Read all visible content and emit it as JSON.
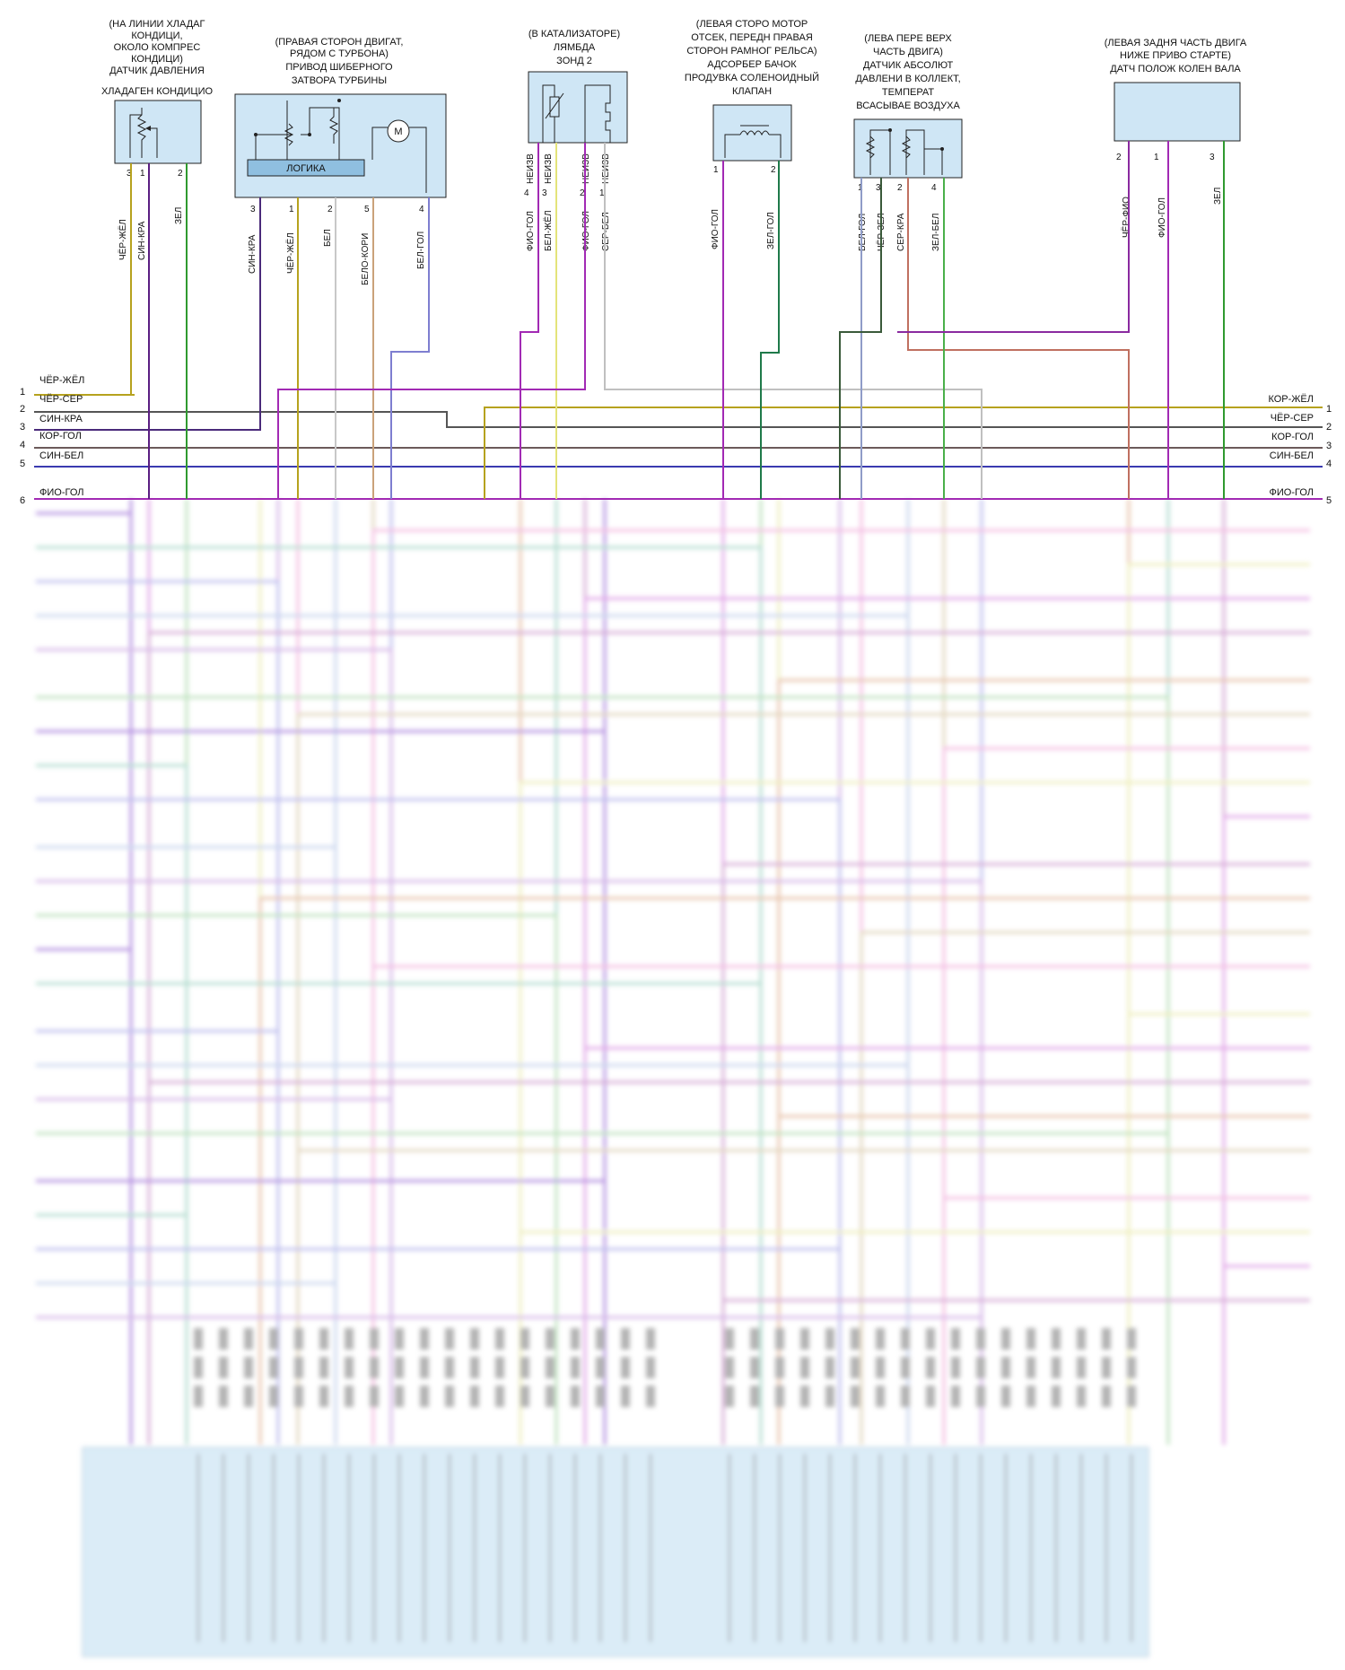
{
  "components": [
    {
      "id": "ac_pressure",
      "label_lines": [
        "(НА ЛИНИИ ХЛАДАГ",
        "КОНДИЦИ,",
        "ОКОЛО КОМПРЕС",
        "КОНДИЦИ)",
        "ДАТЧИК ДАВЛЕНИЯ",
        "ХЛАДАГЕН КОНДИЦИО"
      ],
      "pins": [
        {
          "num": "3",
          "wire": "ЧЁР-ЖЁЛ",
          "color": "#b6a21e"
        },
        {
          "num": "1",
          "wire": "СИН-КРА",
          "color": "#5a1e82"
        },
        {
          "num": "2",
          "wire": "ЗЕЛ",
          "color": "#2f9a2f"
        }
      ]
    },
    {
      "id": "turbo_actuator",
      "label_lines": [
        "(ПРАВАЯ СТОРОН ДВИГАТ,",
        "РЯДОМ С ТУРБОНА)",
        "ПРИВОД ШИБЕРНОГО",
        "ЗАТВОРА ТУРБИНЫ"
      ],
      "inner_text": "ЛОГИКА",
      "motor_text": "M",
      "pins": [
        {
          "num": "3",
          "wire": "СИН-КРА",
          "color": "#4a2a7a"
        },
        {
          "num": "1",
          "wire": "ЧЁР-ЖЁЛ",
          "color": "#b6a21e"
        },
        {
          "num": "2",
          "wire": "БЕЛ",
          "color": "#c8c8c8"
        },
        {
          "num": "5",
          "wire": "БЕЛО-КОРИ",
          "color": "#caa27a"
        },
        {
          "num": "4",
          "wire": "БЕЛ-ГОЛ",
          "color": "#7e7ed0"
        }
      ]
    },
    {
      "id": "lambda",
      "label_lines": [
        "(В КАТАЛИЗАТОРЕ)",
        "ЛЯМБДА",
        "ЗОНД 2"
      ],
      "pins": [
        {
          "num": "4",
          "wire": "ФИО-ГОЛ",
          "tag": "НЕИЗВ",
          "color": "#a22ab4"
        },
        {
          "num": "3",
          "wire": "БЕЛ-ЖЁЛ",
          "tag": "НЕИЗВ",
          "color": "#e4e47a"
        },
        {
          "num": "2",
          "wire": "ФИО-ГОЛ",
          "tag": "НЕИЗВ",
          "color": "#a22ab4"
        },
        {
          "num": "1",
          "wire": "СЕР-БЕЛ",
          "tag": "НЕИЗВ",
          "color": "#c0c0c0"
        }
      ]
    },
    {
      "id": "canister",
      "label_lines": [
        "(ЛЕВАЯ СТОРО МОТОР",
        "ОТСЕК, ПЕРЕДН ПРАВАЯ",
        "СТОРОН РАМНОГ РЕЛЬСА)",
        "АДСОРБЕР БАЧОК",
        "ПРОДУВКА СОЛЕНОИДНЫЙ",
        "КЛАПАН"
      ],
      "pins": [
        {
          "num": "1",
          "wire": "ФИО-ГОЛ",
          "color": "#a22ab4"
        },
        {
          "num": "2",
          "wire": "ЗЕЛ-ГОЛ",
          "color": "#1f7a4a"
        }
      ]
    },
    {
      "id": "map_sensor",
      "label_lines": [
        "(ЛЕВА ПЕРЕ ВЕРХ",
        "ЧАСТЬ ДВИГА)",
        "ДАТЧИК АБСОЛЮТ",
        "ДАВЛЕНИ В КОЛЛЕКТ,",
        "ТЕМПЕРАТ",
        "ВСАСЫВАЕ ВОЗДУХА"
      ],
      "pins": [
        {
          "num": "1",
          "wire": "БЕЛ-ГОЛ",
          "color": "#8f9cc8"
        },
        {
          "num": "3",
          "wire": "ЧЁР-ЗЕЛ",
          "color": "#3a5a3a"
        },
        {
          "num": "2",
          "wire": "СЕР-КРА",
          "color": "#c07060"
        },
        {
          "num": "4",
          "wire": "ЗЕЛ-БЕЛ",
          "color": "#4ab04a"
        }
      ]
    },
    {
      "id": "crank_sensor",
      "label_lines": [
        "(ЛЕВАЯ ЗАДНЯ ЧАСТЬ ДВИГА",
        "НИЖЕ ПРИВО СТАРТЕ)",
        "ДАТЧ ПОЛОЖ КОЛЕН ВАЛА"
      ],
      "pins": [
        {
          "num": "2",
          "wire": "ЧЁР-ФИО",
          "color": "#8a2aa0"
        },
        {
          "num": "1",
          "wire": "ФИО-ГОЛ",
          "color": "#a22ab4"
        },
        {
          "num": "3",
          "wire": "ЗЕЛ",
          "color": "#2f9a2f"
        }
      ]
    }
  ],
  "bus_left": [
    {
      "num": "1",
      "label": "ЧЁР-ЖЁЛ",
      "color": "#b6a21e"
    },
    {
      "num": "2",
      "label": "ЧЁР-СЕР",
      "color": "#555555"
    },
    {
      "num": "3",
      "label": "СИН-КРА",
      "color": "#4a2a7a"
    },
    {
      "num": "4",
      "label": "КОР-ГОЛ",
      "color": "#6b5a5a"
    },
    {
      "num": "5",
      "label": "СИН-БЕЛ",
      "color": "#3a3ab0"
    },
    {
      "num": "6",
      "label": "ФИО-ГОЛ",
      "color": "#a22ab4"
    }
  ],
  "bus_right": [
    {
      "num": "1",
      "label": "КОР-ЖЁЛ",
      "color": "#b6a21e"
    },
    {
      "num": "2",
      "label": "ЧЁР-СЕР",
      "color": "#555555"
    },
    {
      "num": "3",
      "label": "КОР-ГОЛ",
      "color": "#6b5a5a"
    },
    {
      "num": "4",
      "label": "СИН-БЕЛ",
      "color": "#3a3ab0"
    },
    {
      "num": "5",
      "label": "ФИО-ГОЛ",
      "color": "#a22ab4"
    }
  ],
  "blurred_wire_colors": [
    "#9a6ad6",
    "#d88ae0",
    "#a8d8a8",
    "#e8e8a8",
    "#c8a0e0",
    "#f0a8d8",
    "#b8c8e8",
    "#d8c8a8",
    "#a8a8e8",
    "#e0b090",
    "#9ad0c0",
    "#c890c8"
  ]
}
